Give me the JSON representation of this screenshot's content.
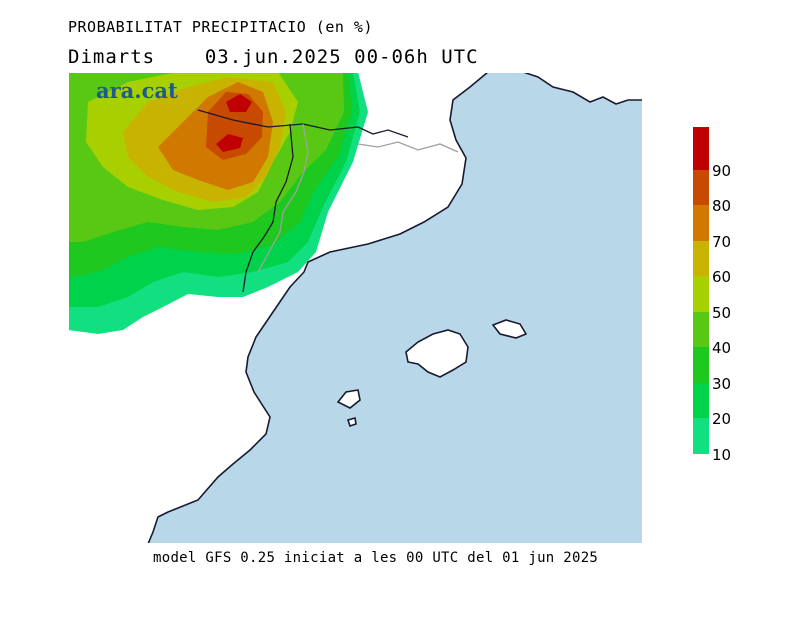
{
  "header": {
    "title": "PROBABILITAT PRECIPITACIO (en %)",
    "day": "Dimarts",
    "date": "03.jun.2025",
    "period": "00-06h UTC"
  },
  "logo": "ara.cat",
  "footer": "model GFS 0.25 iniciat a les 00 UTC del 01 jun 2025",
  "legend": {
    "labels": [
      "90",
      "80",
      "70",
      "60",
      "50",
      "40",
      "30",
      "20",
      "10"
    ],
    "colors": [
      "#c00000",
      "#c84a00",
      "#d07800",
      "#c8b400",
      "#a8d000",
      "#58c814",
      "#1ec81e",
      "#00d24a",
      "#12e080"
    ]
  },
  "colors": {
    "sea": "#b8d8ea",
    "land": "#ffffff",
    "coast": "#1a1a2e",
    "border": "#a0a0a0"
  }
}
